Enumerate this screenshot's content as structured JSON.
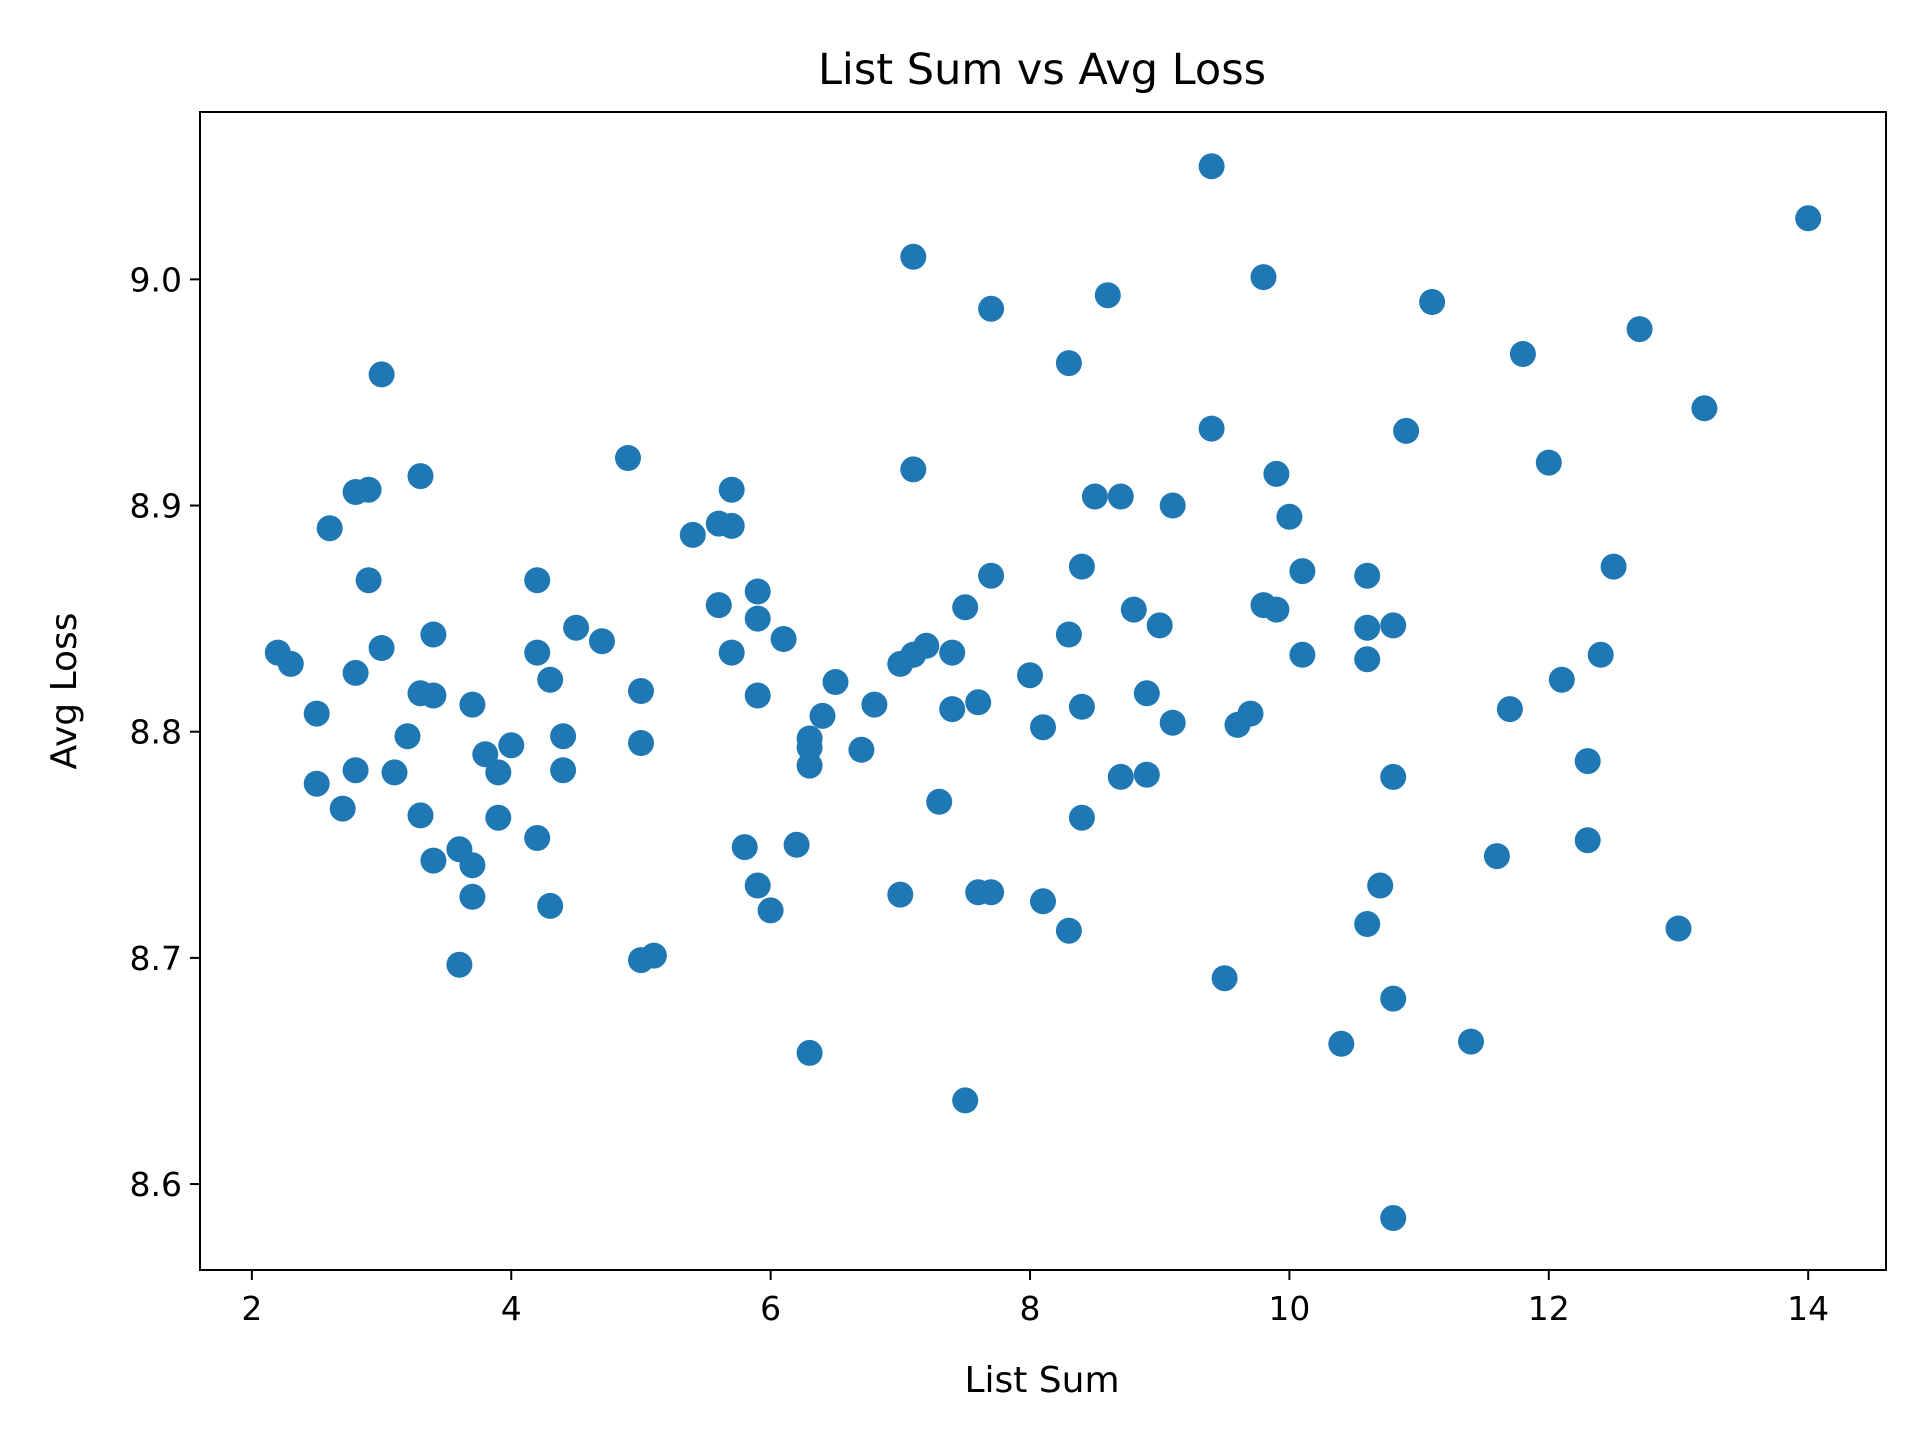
{
  "chart_data": {
    "type": "scatter",
    "title": "List Sum vs Avg Loss",
    "xlabel": "List Sum",
    "ylabel": "Avg Loss",
    "xlim": [
      1.6,
      14.6
    ],
    "ylim": [
      8.562,
      9.074
    ],
    "xticks": [
      2,
      4,
      6,
      8,
      10,
      12,
      14
    ],
    "yticks": [
      8.6,
      8.7,
      8.8,
      8.9,
      9.0
    ],
    "ytick_labels": [
      "8.6",
      "8.7",
      "8.8",
      "8.9",
      "9.0"
    ],
    "grid": false,
    "color": "#1f77b4",
    "points": [
      [
        2.2,
        8.835
      ],
      [
        2.3,
        8.83
      ],
      [
        2.5,
        8.808
      ],
      [
        2.5,
        8.777
      ],
      [
        2.6,
        8.89
      ],
      [
        2.7,
        8.766
      ],
      [
        2.8,
        8.906
      ],
      [
        2.8,
        8.826
      ],
      [
        2.8,
        8.783
      ],
      [
        2.9,
        8.907
      ],
      [
        2.9,
        8.867
      ],
      [
        3.0,
        8.958
      ],
      [
        3.0,
        8.837
      ],
      [
        3.1,
        8.782
      ],
      [
        3.2,
        8.798
      ],
      [
        3.3,
        8.913
      ],
      [
        3.3,
        8.817
      ],
      [
        3.3,
        8.763
      ],
      [
        3.4,
        8.843
      ],
      [
        3.4,
        8.816
      ],
      [
        3.4,
        8.743
      ],
      [
        3.6,
        8.748
      ],
      [
        3.6,
        8.697
      ],
      [
        3.7,
        8.812
      ],
      [
        3.7,
        8.741
      ],
      [
        3.7,
        8.727
      ],
      [
        3.8,
        8.79
      ],
      [
        3.9,
        8.782
      ],
      [
        3.9,
        8.762
      ],
      [
        4.0,
        8.794
      ],
      [
        4.2,
        8.867
      ],
      [
        4.2,
        8.835
      ],
      [
        4.2,
        8.753
      ],
      [
        4.3,
        8.823
      ],
      [
        4.3,
        8.723
      ],
      [
        4.4,
        8.798
      ],
      [
        4.4,
        8.783
      ],
      [
        4.5,
        8.846
      ],
      [
        4.7,
        8.84
      ],
      [
        4.9,
        8.921
      ],
      [
        5.0,
        8.818
      ],
      [
        5.0,
        8.795
      ],
      [
        5.0,
        8.699
      ],
      [
        5.1,
        8.701
      ],
      [
        5.4,
        8.887
      ],
      [
        5.6,
        8.892
      ],
      [
        5.6,
        8.856
      ],
      [
        5.7,
        8.907
      ],
      [
        5.7,
        8.891
      ],
      [
        5.7,
        8.835
      ],
      [
        5.8,
        8.749
      ],
      [
        5.9,
        8.862
      ],
      [
        5.9,
        8.85
      ],
      [
        5.9,
        8.816
      ],
      [
        5.9,
        8.732
      ],
      [
        6.0,
        8.721
      ],
      [
        6.1,
        8.841
      ],
      [
        6.2,
        8.75
      ],
      [
        6.3,
        8.797
      ],
      [
        6.3,
        8.793
      ],
      [
        6.3,
        8.785
      ],
      [
        6.3,
        8.658
      ],
      [
        6.4,
        8.807
      ],
      [
        6.5,
        8.822
      ],
      [
        6.7,
        8.792
      ],
      [
        6.8,
        8.812
      ],
      [
        7.0,
        8.83
      ],
      [
        7.0,
        8.728
      ],
      [
        7.1,
        9.01
      ],
      [
        7.1,
        8.916
      ],
      [
        7.1,
        8.834
      ],
      [
        7.2,
        8.838
      ],
      [
        7.3,
        8.769
      ],
      [
        7.4,
        8.835
      ],
      [
        7.4,
        8.81
      ],
      [
        7.5,
        8.855
      ],
      [
        7.5,
        8.637
      ],
      [
        7.6,
        8.813
      ],
      [
        7.6,
        8.729
      ],
      [
        7.7,
        8.987
      ],
      [
        7.7,
        8.869
      ],
      [
        7.7,
        8.729
      ],
      [
        8.0,
        8.825
      ],
      [
        8.1,
        8.802
      ],
      [
        8.1,
        8.725
      ],
      [
        8.3,
        8.963
      ],
      [
        8.3,
        8.843
      ],
      [
        8.3,
        8.712
      ],
      [
        8.4,
        8.873
      ],
      [
        8.4,
        8.811
      ],
      [
        8.4,
        8.762
      ],
      [
        8.5,
        8.904
      ],
      [
        8.6,
        8.993
      ],
      [
        8.7,
        8.904
      ],
      [
        8.7,
        8.78
      ],
      [
        8.8,
        8.854
      ],
      [
        8.9,
        8.817
      ],
      [
        8.9,
        8.781
      ],
      [
        9.0,
        8.847
      ],
      [
        9.1,
        8.9
      ],
      [
        9.1,
        8.804
      ],
      [
        9.4,
        9.05
      ],
      [
        9.4,
        8.934
      ],
      [
        9.5,
        8.691
      ],
      [
        9.6,
        8.803
      ],
      [
        9.7,
        8.808
      ],
      [
        9.8,
        9.001
      ],
      [
        9.8,
        8.856
      ],
      [
        9.9,
        8.914
      ],
      [
        9.9,
        8.854
      ],
      [
        10.0,
        8.895
      ],
      [
        10.1,
        8.871
      ],
      [
        10.1,
        8.834
      ],
      [
        10.4,
        8.662
      ],
      [
        10.6,
        8.869
      ],
      [
        10.6,
        8.846
      ],
      [
        10.6,
        8.832
      ],
      [
        10.6,
        8.715
      ],
      [
        10.7,
        8.732
      ],
      [
        10.8,
        8.847
      ],
      [
        10.8,
        8.78
      ],
      [
        10.8,
        8.682
      ],
      [
        10.8,
        8.585
      ],
      [
        10.9,
        8.933
      ],
      [
        11.1,
        8.99
      ],
      [
        11.4,
        8.663
      ],
      [
        11.6,
        8.745
      ],
      [
        11.7,
        8.81
      ],
      [
        11.8,
        8.967
      ],
      [
        12.0,
        8.919
      ],
      [
        12.1,
        8.823
      ],
      [
        12.3,
        8.787
      ],
      [
        12.3,
        8.752
      ],
      [
        12.4,
        8.834
      ],
      [
        12.5,
        8.873
      ],
      [
        12.7,
        8.978
      ],
      [
        13.0,
        8.713
      ],
      [
        13.2,
        8.943
      ],
      [
        14.0,
        9.027
      ]
    ]
  }
}
